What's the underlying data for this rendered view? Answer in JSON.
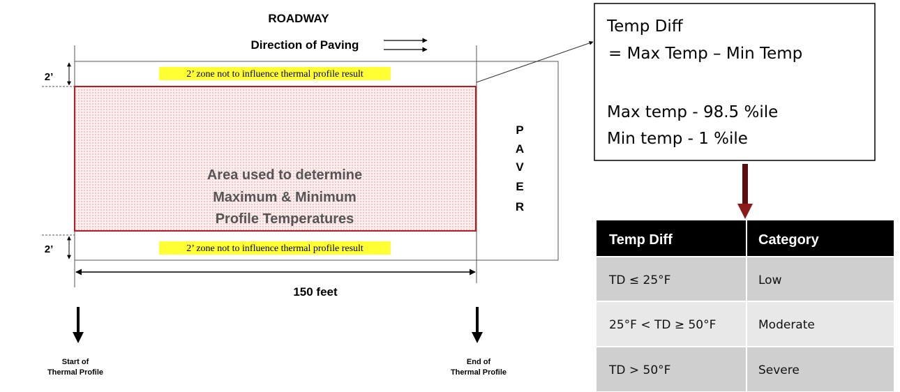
{
  "diagram": {
    "title": "ROADWAY",
    "direction": "Direction of Paving",
    "offsets": [
      "2’",
      "2’"
    ],
    "zones": [
      "2’ zone not to influence thermal profile result",
      "2’ zone not to influence thermal profile result"
    ],
    "area": [
      "Area used to determine",
      "Maximum & Minimum",
      "Profile Temperatures"
    ],
    "paver": [
      "P",
      "A",
      "V",
      "E",
      "R"
    ],
    "length": "150 feet",
    "start": [
      "Start of",
      "Thermal Profile"
    ],
    "end": [
      "End of",
      "Thermal Profile"
    ]
  },
  "formula": {
    "lines": [
      "Temp Diff",
      "= Max Temp – Min Temp",
      "Max temp - 98.5 %ile",
      "Min temp -  1 %ile"
    ]
  },
  "table": {
    "header": [
      "Temp Diff",
      "Category"
    ],
    "rows": [
      [
        "TD ≤ 25°F",
        "Low"
      ],
      [
        "25°F < TD ≥ 50°F",
        "Moderate"
      ],
      [
        "TD > 50°F",
        "Severe"
      ]
    ]
  }
}
